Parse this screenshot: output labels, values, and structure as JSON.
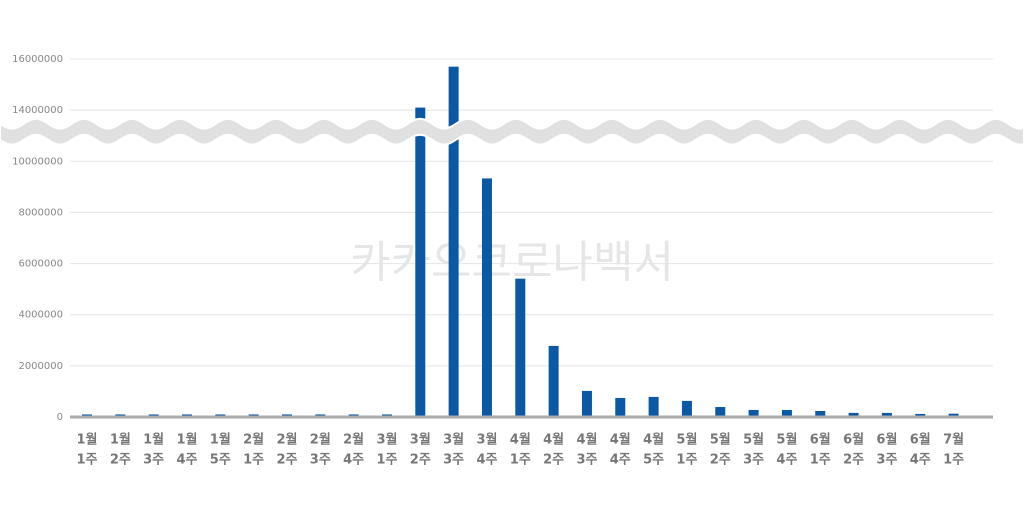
{
  "chart_data": {
    "type": "bar",
    "watermark": "카카오코로나백서",
    "categories": [
      [
        "1월",
        "1주"
      ],
      [
        "1월",
        "2주"
      ],
      [
        "1월",
        "3주"
      ],
      [
        "1월",
        "4주"
      ],
      [
        "1월",
        "5주"
      ],
      [
        "2월",
        "1주"
      ],
      [
        "2월",
        "2주"
      ],
      [
        "2월",
        "3주"
      ],
      [
        "2월",
        "4주"
      ],
      [
        "3월",
        "1주"
      ],
      [
        "3월",
        "2주"
      ],
      [
        "3월",
        "3주"
      ],
      [
        "3월",
        "4주"
      ],
      [
        "4월",
        "1주"
      ],
      [
        "4월",
        "2주"
      ],
      [
        "4월",
        "3주"
      ],
      [
        "4월",
        "4주"
      ],
      [
        "4월",
        "5주"
      ],
      [
        "5월",
        "1주"
      ],
      [
        "5월",
        "2주"
      ],
      [
        "5월",
        "3주"
      ],
      [
        "5월",
        "4주"
      ],
      [
        "6월",
        "1주"
      ],
      [
        "6월",
        "2주"
      ],
      [
        "6월",
        "3주"
      ],
      [
        "6월",
        "4주"
      ],
      [
        "7월",
        "1주"
      ]
    ],
    "values": [
      100000,
      100000,
      100000,
      100000,
      100000,
      100000,
      100000,
      100000,
      100000,
      100000,
      14100000,
      15700000,
      9330000,
      5410000,
      2780000,
      1020000,
      745000,
      785000,
      630000,
      390000,
      275000,
      275000,
      235000,
      160000,
      160000,
      120000,
      130000
    ],
    "color": "#0b58a4",
    "ylim": [
      0,
      16000000
    ],
    "y_break": [
      10000000,
      12000000
    ],
    "yticks": [
      0,
      2000000,
      4000000,
      6000000,
      8000000,
      10000000,
      14000000,
      16000000
    ],
    "grid": true
  }
}
